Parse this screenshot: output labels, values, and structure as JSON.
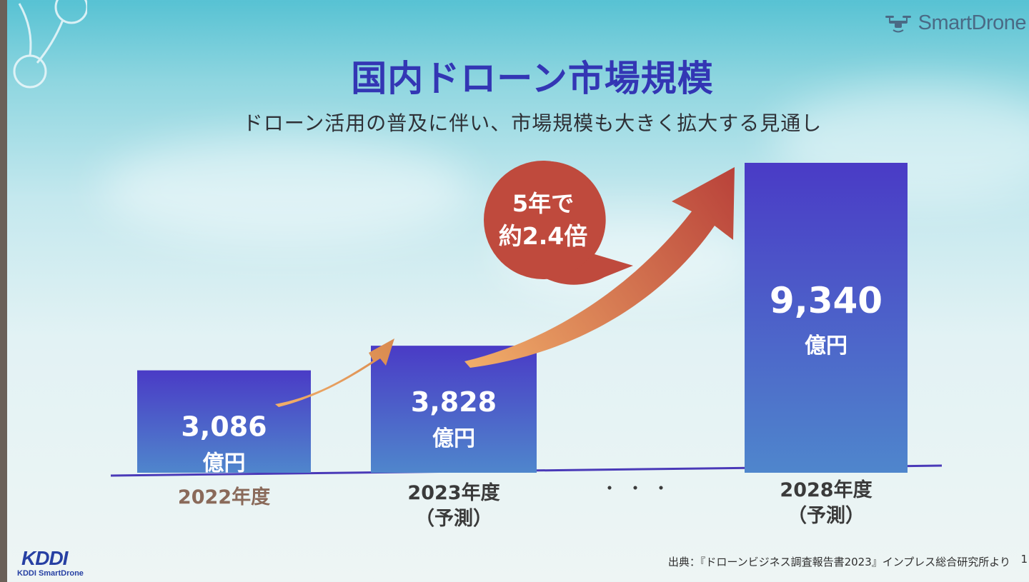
{
  "brand": {
    "name": "SmartDrone",
    "icon": "drone-icon"
  },
  "slide": {
    "title": "国内ドローン市場規模",
    "subtitle": "ドローン活用の普及に伴い、市場規模も大きく拡大する見通し"
  },
  "chart_data": {
    "type": "bar",
    "categories": [
      [
        "2022年度"
      ],
      [
        "2023年度",
        "（予測）"
      ],
      [
        "2028年度",
        "（予測）"
      ]
    ],
    "values": [
      3086,
      3828,
      9340
    ],
    "value_labels": [
      "3,086",
      "3,828",
      "9,340"
    ],
    "unit": "億円",
    "gap_label": "・・・",
    "callout": {
      "lines": [
        "5年で",
        "約2.4倍"
      ]
    },
    "xlabel": "",
    "ylabel": "",
    "grid": false
  },
  "footer": {
    "source": "出典：『ドローンビジネス調査報告書2023』インプレス総合研究所より",
    "page": "1"
  },
  "company_logo": {
    "mark": "KDDI",
    "text": "KDDI SmartDrone"
  },
  "colors": {
    "title": "#3336b4",
    "bar_top": "#4a3bc6",
    "bar_bottom": "#4f86cc",
    "axis": "#4a3ab8",
    "arrow_start": "#f2b06a",
    "arrow_end": "#b9423a",
    "callout": "#bf4a3d",
    "category_label_2022": "#8a6a5a",
    "category_label": "#3a3a3a"
  }
}
